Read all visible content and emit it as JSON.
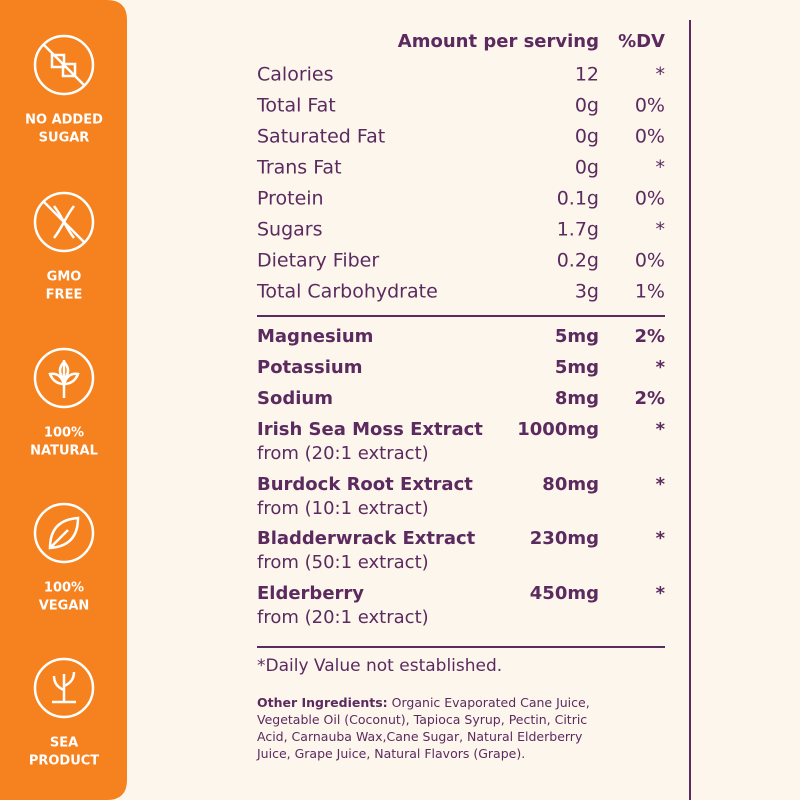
{
  "badges": [
    [
      "NO ADDED",
      "SUGAR"
    ],
    [
      "GMO",
      "FREE"
    ],
    [
      "100%",
      "NATURAL"
    ],
    [
      "100%",
      "VEGAN"
    ],
    [
      "SEA",
      "PRODUCT"
    ]
  ],
  "header": {
    "amount": "Amount per serving",
    "dv": "%DV"
  },
  "basic_rows": [
    [
      "Calories",
      "12",
      "*"
    ],
    [
      "Total Fat",
      "0g",
      "0%"
    ],
    [
      "Saturated Fat",
      "0g",
      "0%"
    ],
    [
      "Trans Fat",
      "0g",
      "*"
    ],
    [
      "Protein",
      "0.1g",
      "0%"
    ],
    [
      "Sugars",
      "1.7g",
      "*"
    ],
    [
      "Dietary Fiber",
      "0.2g",
      "0%"
    ],
    [
      "Total Carbohydrate",
      "3g",
      "1%"
    ]
  ],
  "mineral_rows": [
    [
      "Magnesium",
      "5mg",
      "2%"
    ],
    [
      "Potassium",
      "5mg",
      "*"
    ],
    [
      "Sodium",
      "8mg",
      "2%"
    ]
  ],
  "extracts": [
    {
      "name": "Irish Sea Moss Extract",
      "amount": "1000mg",
      "dv": "*",
      "source": "from (20:1 extract)"
    },
    {
      "name": "Burdock Root Extract",
      "amount": "80mg",
      "dv": "*",
      "source": "from (10:1 extract)"
    },
    {
      "name": "Bladderwrack Extract",
      "amount": "230mg",
      "dv": "*",
      "source": "from (50:1 extract)"
    },
    {
      "name": "Elderberry",
      "amount": "450mg",
      "dv": "*",
      "source": "from (20:1 extract)"
    }
  ],
  "footnote": "*Daily Value not established.",
  "other_ingredients": {
    "label": "Other Ingredients:",
    "lines": [
      "Organic Evaporated Cane Juice,",
      "Vegetable Oil (Coconut), Tapioca Syrup, Pectin, Citric",
      "Acid, Carnauba Wax,Cane Sugar, Natural Elderberry",
      "Juice, Grape Juice, Natural Flavors (Grape)."
    ]
  }
}
